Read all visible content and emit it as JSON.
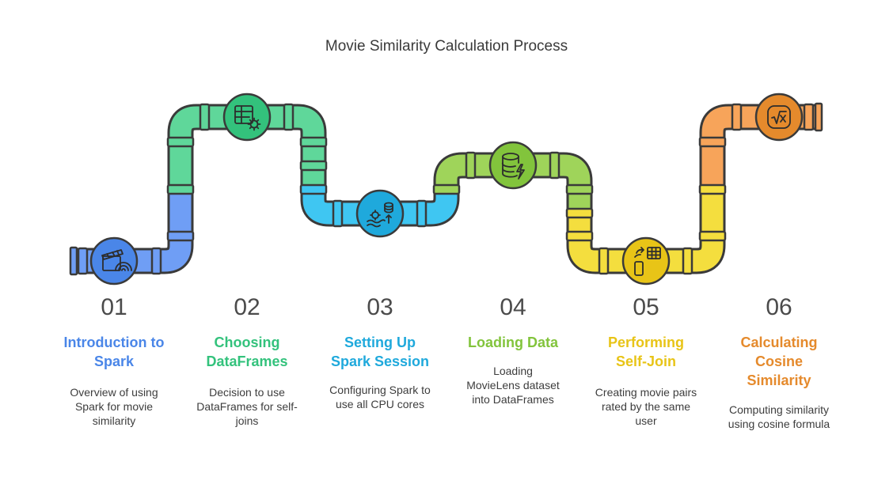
{
  "title": "Movie Similarity Calculation Process",
  "steps": [
    {
      "num": "01",
      "title": "Introduction to Spark",
      "desc": "Overview of using Spark for movie similarity",
      "color": "#4a86e8",
      "icon": "film-clapper-icon"
    },
    {
      "num": "02",
      "title": "Choosing DataFrames",
      "desc": "Decision to use DataFrames for self-joins",
      "color": "#33c27c",
      "icon": "table-gear-icon"
    },
    {
      "num": "03",
      "title": "Setting Up Spark Session",
      "desc": "Configuring Spark to use all CPU cores",
      "color": "#1fa9dc",
      "icon": "data-flow-icon"
    },
    {
      "num": "04",
      "title": "Loading Data",
      "desc": "Loading MovieLens dataset into DataFrames",
      "color": "#82c43c",
      "icon": "database-bolt-icon"
    },
    {
      "num": "05",
      "title": "Performing Self-Join",
      "desc": "Creating movie pairs rated by the same user",
      "color": "#e8c417",
      "icon": "join-table-icon"
    },
    {
      "num": "06",
      "title": "Calculating Cosine Similarity",
      "desc": "Computing similarity using cosine formula",
      "color": "#e58a2c",
      "icon": "square-root-icon"
    }
  ]
}
